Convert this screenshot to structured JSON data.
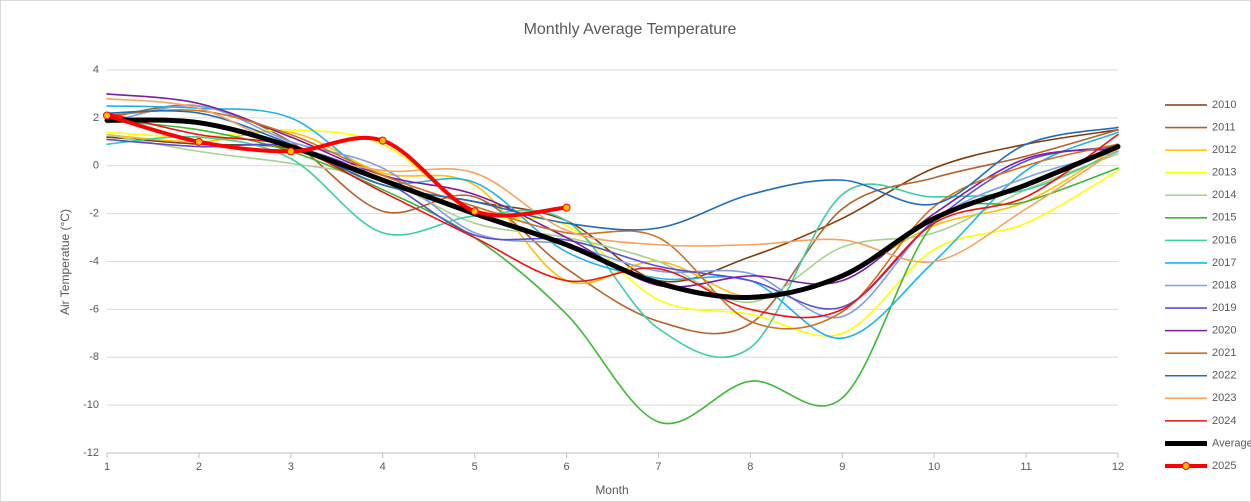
{
  "chart_data": {
    "type": "line",
    "title": "Monthly Average Temperature",
    "x_label": "Month",
    "y_label": "Air Temperatue (°C)",
    "x": [
      1,
      2,
      3,
      4,
      5,
      6,
      7,
      8,
      9,
      10,
      11,
      12
    ],
    "xlim": [
      1,
      12
    ],
    "xticks": [
      1,
      2,
      3,
      4,
      5,
      6,
      7,
      8,
      9,
      10,
      11,
      12
    ],
    "ylim": [
      -12,
      4
    ],
    "yticks": [
      -12,
      -10,
      -8,
      -6,
      -4,
      -2,
      0,
      2,
      4
    ],
    "grid": true,
    "smooth": true,
    "legend": "right",
    "series": [
      {
        "name": "2010",
        "color": "#843c0c",
        "values": [
          1.2,
          0.9,
          0.7,
          -0.8,
          -1.5,
          -2.3,
          -4.8,
          -3.8,
          -2.2,
          -0.1,
          0.9,
          1.5
        ]
      },
      {
        "name": "2011",
        "color": "#b4622a",
        "values": [
          2.0,
          2.5,
          1.0,
          -1.9,
          -1.3,
          -4.3,
          -6.5,
          -6.6,
          -1.8,
          -0.5,
          0.4,
          1.5
        ]
      },
      {
        "name": "2012",
        "color": "#ffc000",
        "values": [
          1.3,
          1.0,
          1.4,
          -0.3,
          -0.8,
          -4.8,
          -4.0,
          -5.5,
          -4.6,
          -2.5,
          -1.5,
          0.8
        ]
      },
      {
        "name": "2013",
        "color": "#ffff00",
        "values": [
          1.4,
          1.2,
          1.5,
          0.9,
          -1.9,
          -2.5,
          -5.6,
          -6.2,
          -7.0,
          -3.5,
          -2.4,
          -0.2
        ]
      },
      {
        "name": "2014",
        "color": "#a9d18e",
        "values": [
          1.3,
          0.6,
          0.1,
          -0.6,
          -2.4,
          -3.0,
          -4.0,
          -5.7,
          -3.4,
          -2.8,
          -1.0,
          0.5
        ]
      },
      {
        "name": "2015",
        "color": "#3cb832",
        "values": [
          1.9,
          1.5,
          0.6,
          -1.0,
          -3.0,
          -6.2,
          -10.7,
          -9.0,
          -9.7,
          -2.4,
          -1.5,
          -0.1
        ]
      },
      {
        "name": "2016",
        "color": "#3ccfa0",
        "values": [
          0.9,
          1.2,
          0.3,
          -2.8,
          -2.1,
          -2.3,
          -6.8,
          -7.6,
          -1.2,
          -1.3,
          -1.0,
          0.6
        ]
      },
      {
        "name": "2017",
        "color": "#1fb4e8",
        "values": [
          2.5,
          2.4,
          2.0,
          -0.6,
          -0.7,
          -3.6,
          -4.7,
          -4.8,
          -7.2,
          -4.0,
          -0.2,
          1.4
        ]
      },
      {
        "name": "2018",
        "color": "#7f9fe0",
        "values": [
          1.8,
          2.5,
          1.0,
          -0.1,
          -2.8,
          -3.3,
          -4.4,
          -4.5,
          -6.3,
          -2.3,
          -0.5,
          0.6
        ]
      },
      {
        "name": "2019",
        "color": "#5a4fd0",
        "values": [
          1.1,
          0.8,
          0.8,
          -0.6,
          -2.9,
          -3.1,
          -4.2,
          -4.8,
          -5.9,
          -2.3,
          0.2,
          0.8
        ]
      },
      {
        "name": "2020",
        "color": "#7a1fa0",
        "values": [
          3.0,
          2.6,
          1.2,
          -0.4,
          -1.2,
          -3.0,
          -5.0,
          -4.6,
          -4.8,
          -2.0,
          0.3,
          0.7
        ]
      },
      {
        "name": "2021",
        "color": "#d07020",
        "values": [
          2.1,
          2.3,
          1.3,
          -0.4,
          -1.7,
          -2.8,
          -3.0,
          -6.5,
          -6.1,
          -1.7,
          0.0,
          0.9
        ]
      },
      {
        "name": "2022",
        "color": "#1f6fb8",
        "values": [
          2.2,
          2.2,
          0.9,
          -0.8,
          -1.5,
          -2.4,
          -2.6,
          -1.2,
          -0.6,
          -1.6,
          0.9,
          1.6
        ]
      },
      {
        "name": "2023",
        "color": "#f4a460",
        "values": [
          2.8,
          2.4,
          0.7,
          -0.2,
          -0.3,
          -2.7,
          -3.3,
          -3.3,
          -3.1,
          -4.0,
          -1.8,
          0.7
        ]
      },
      {
        "name": "2024",
        "color": "#ee1111",
        "values": [
          2.2,
          1.3,
          0.8,
          -1.1,
          -3.0,
          -4.8,
          -4.3,
          -6.0,
          -6.0,
          -2.4,
          -1.3,
          1.3
        ]
      },
      {
        "name": "Average",
        "color": "#000000",
        "values": [
          1.9,
          1.8,
          0.8,
          -0.6,
          -2.0,
          -3.3,
          -4.9,
          -5.5,
          -4.6,
          -2.2,
          -0.8,
          0.8
        ]
      },
      {
        "name": "2025",
        "color": "#ff0000",
        "marker": true,
        "marker_color": "#ffc000",
        "values": [
          2.1,
          1.0,
          0.6,
          1.05,
          -1.9,
          -1.75,
          null,
          null,
          null,
          null,
          null,
          null
        ]
      }
    ]
  }
}
